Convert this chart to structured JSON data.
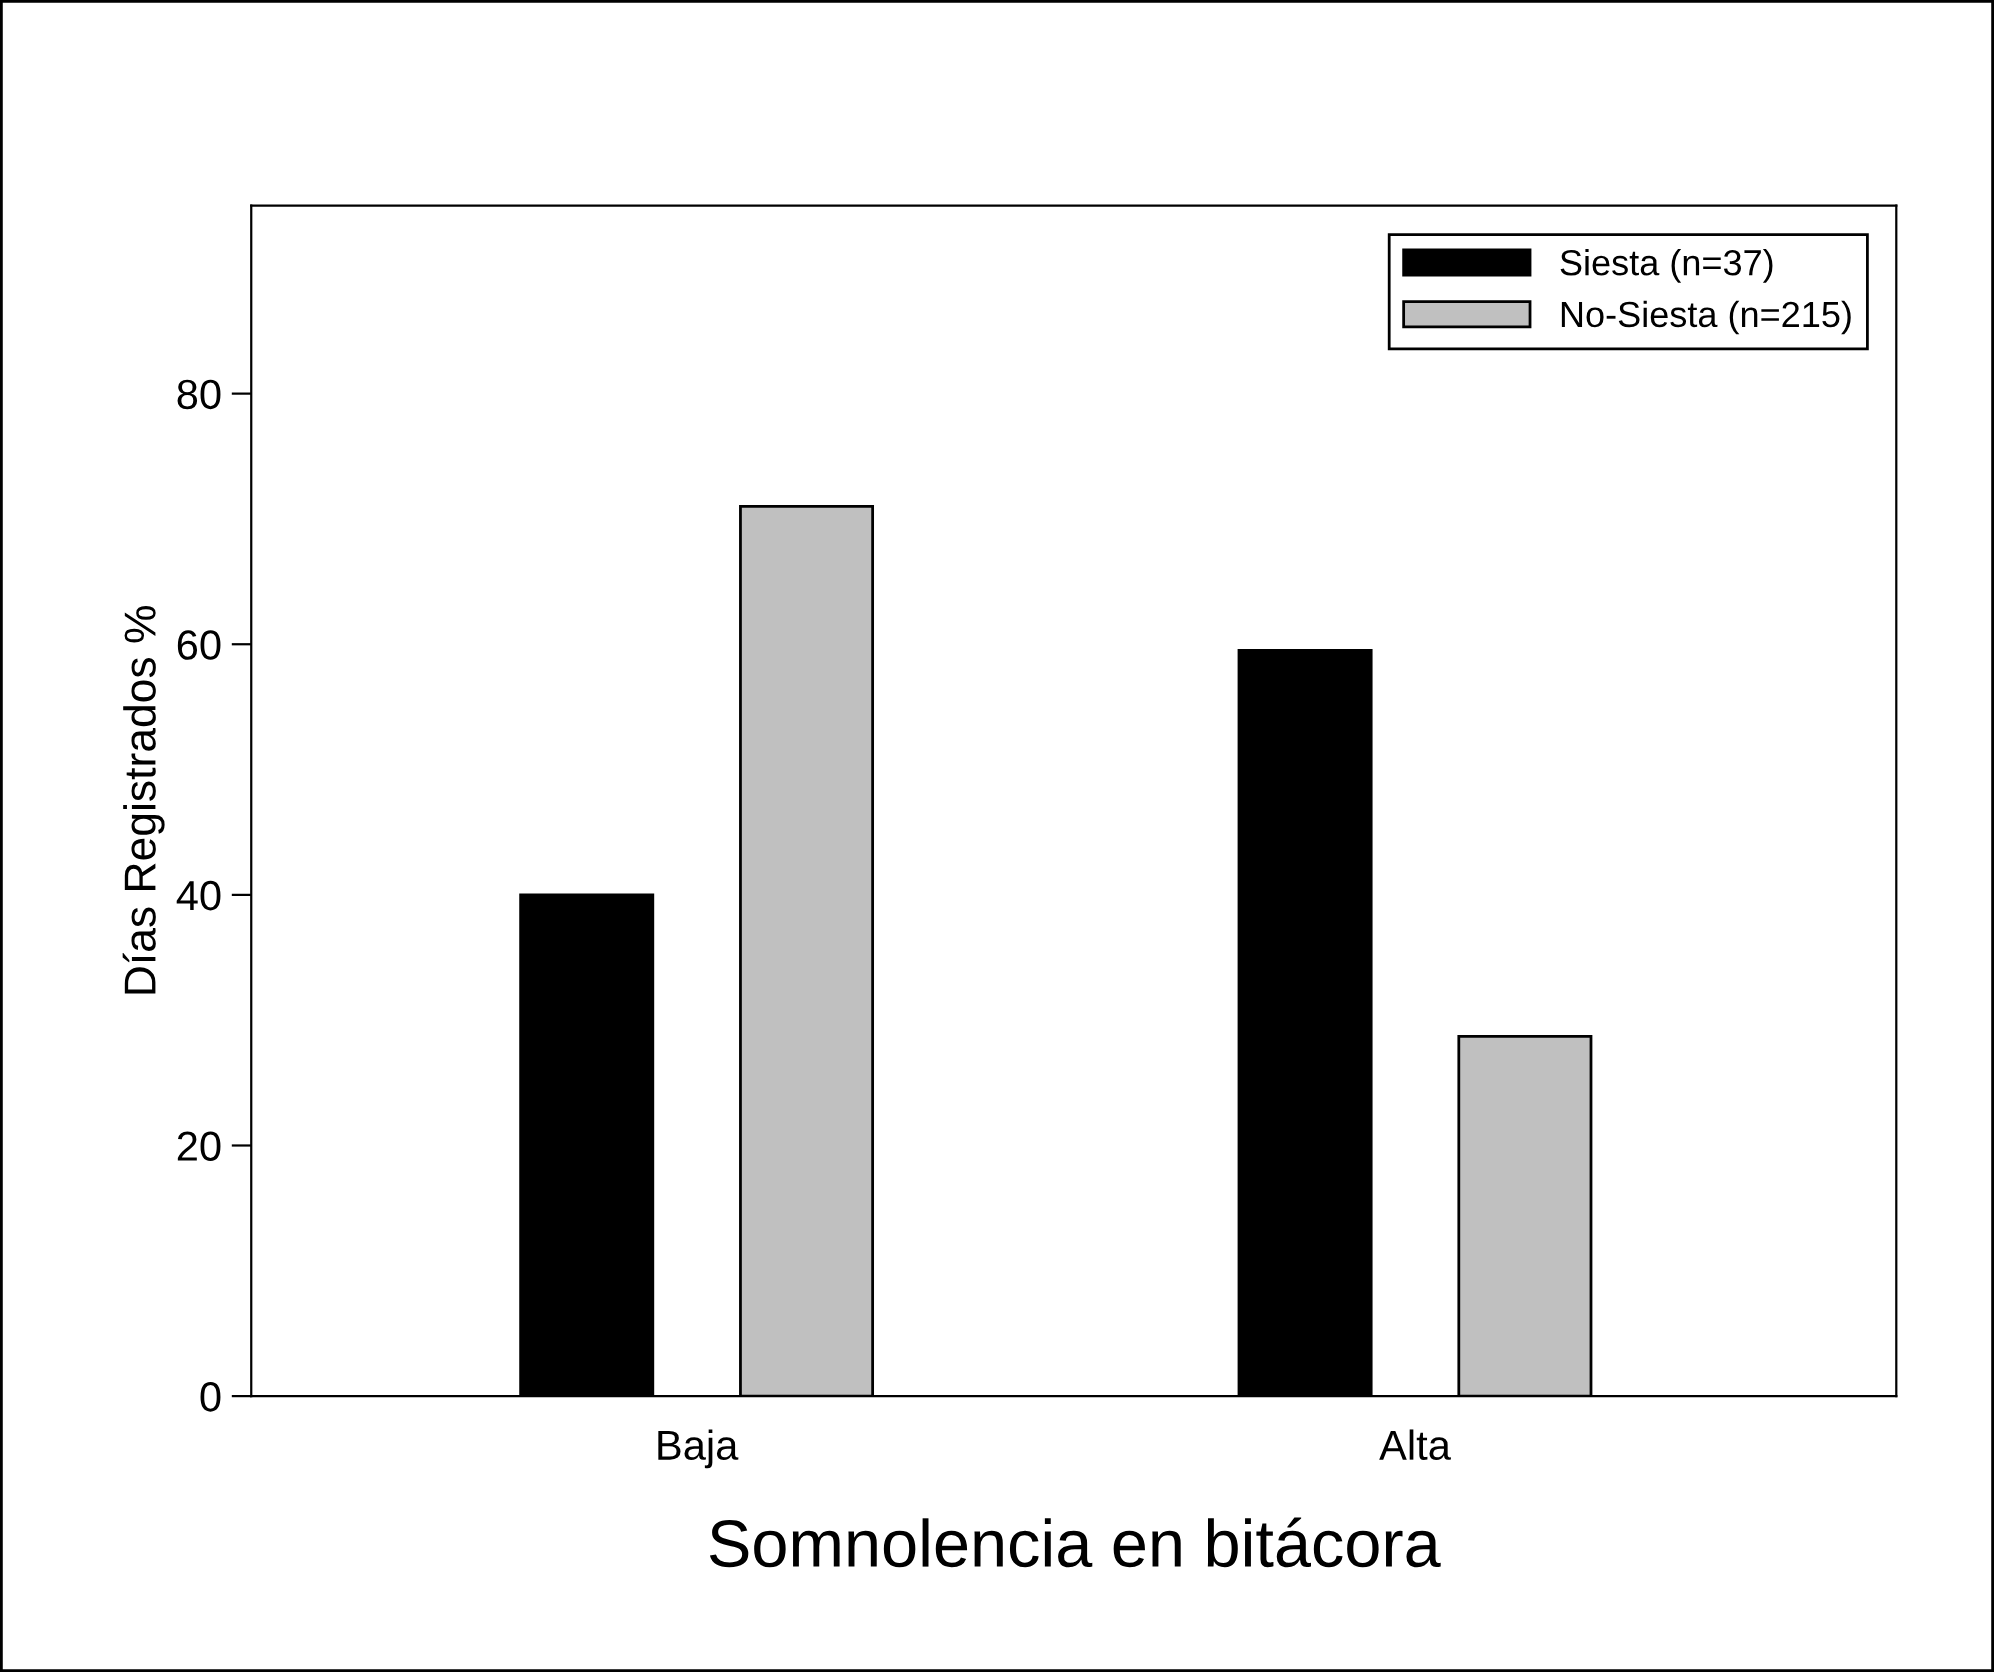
{
  "chart_data": {
    "type": "bar",
    "xlabel": "Somnolencia en bitácora",
    "ylabel": "Días Registrados %",
    "categories": [
      "Baja",
      "Alta"
    ],
    "series": [
      {
        "name": "Siesta (n=37)",
        "color": "#000000",
        "values": [
          40,
          59.5
        ]
      },
      {
        "name": "No-Siesta (n=215)",
        "color": "#c0c0c0",
        "values": [
          71,
          28.7
        ]
      }
    ],
    "ylim": [
      0,
      95
    ],
    "yticks": [
      0,
      20,
      40,
      60,
      80
    ],
    "grid": false,
    "legend": "top right"
  }
}
